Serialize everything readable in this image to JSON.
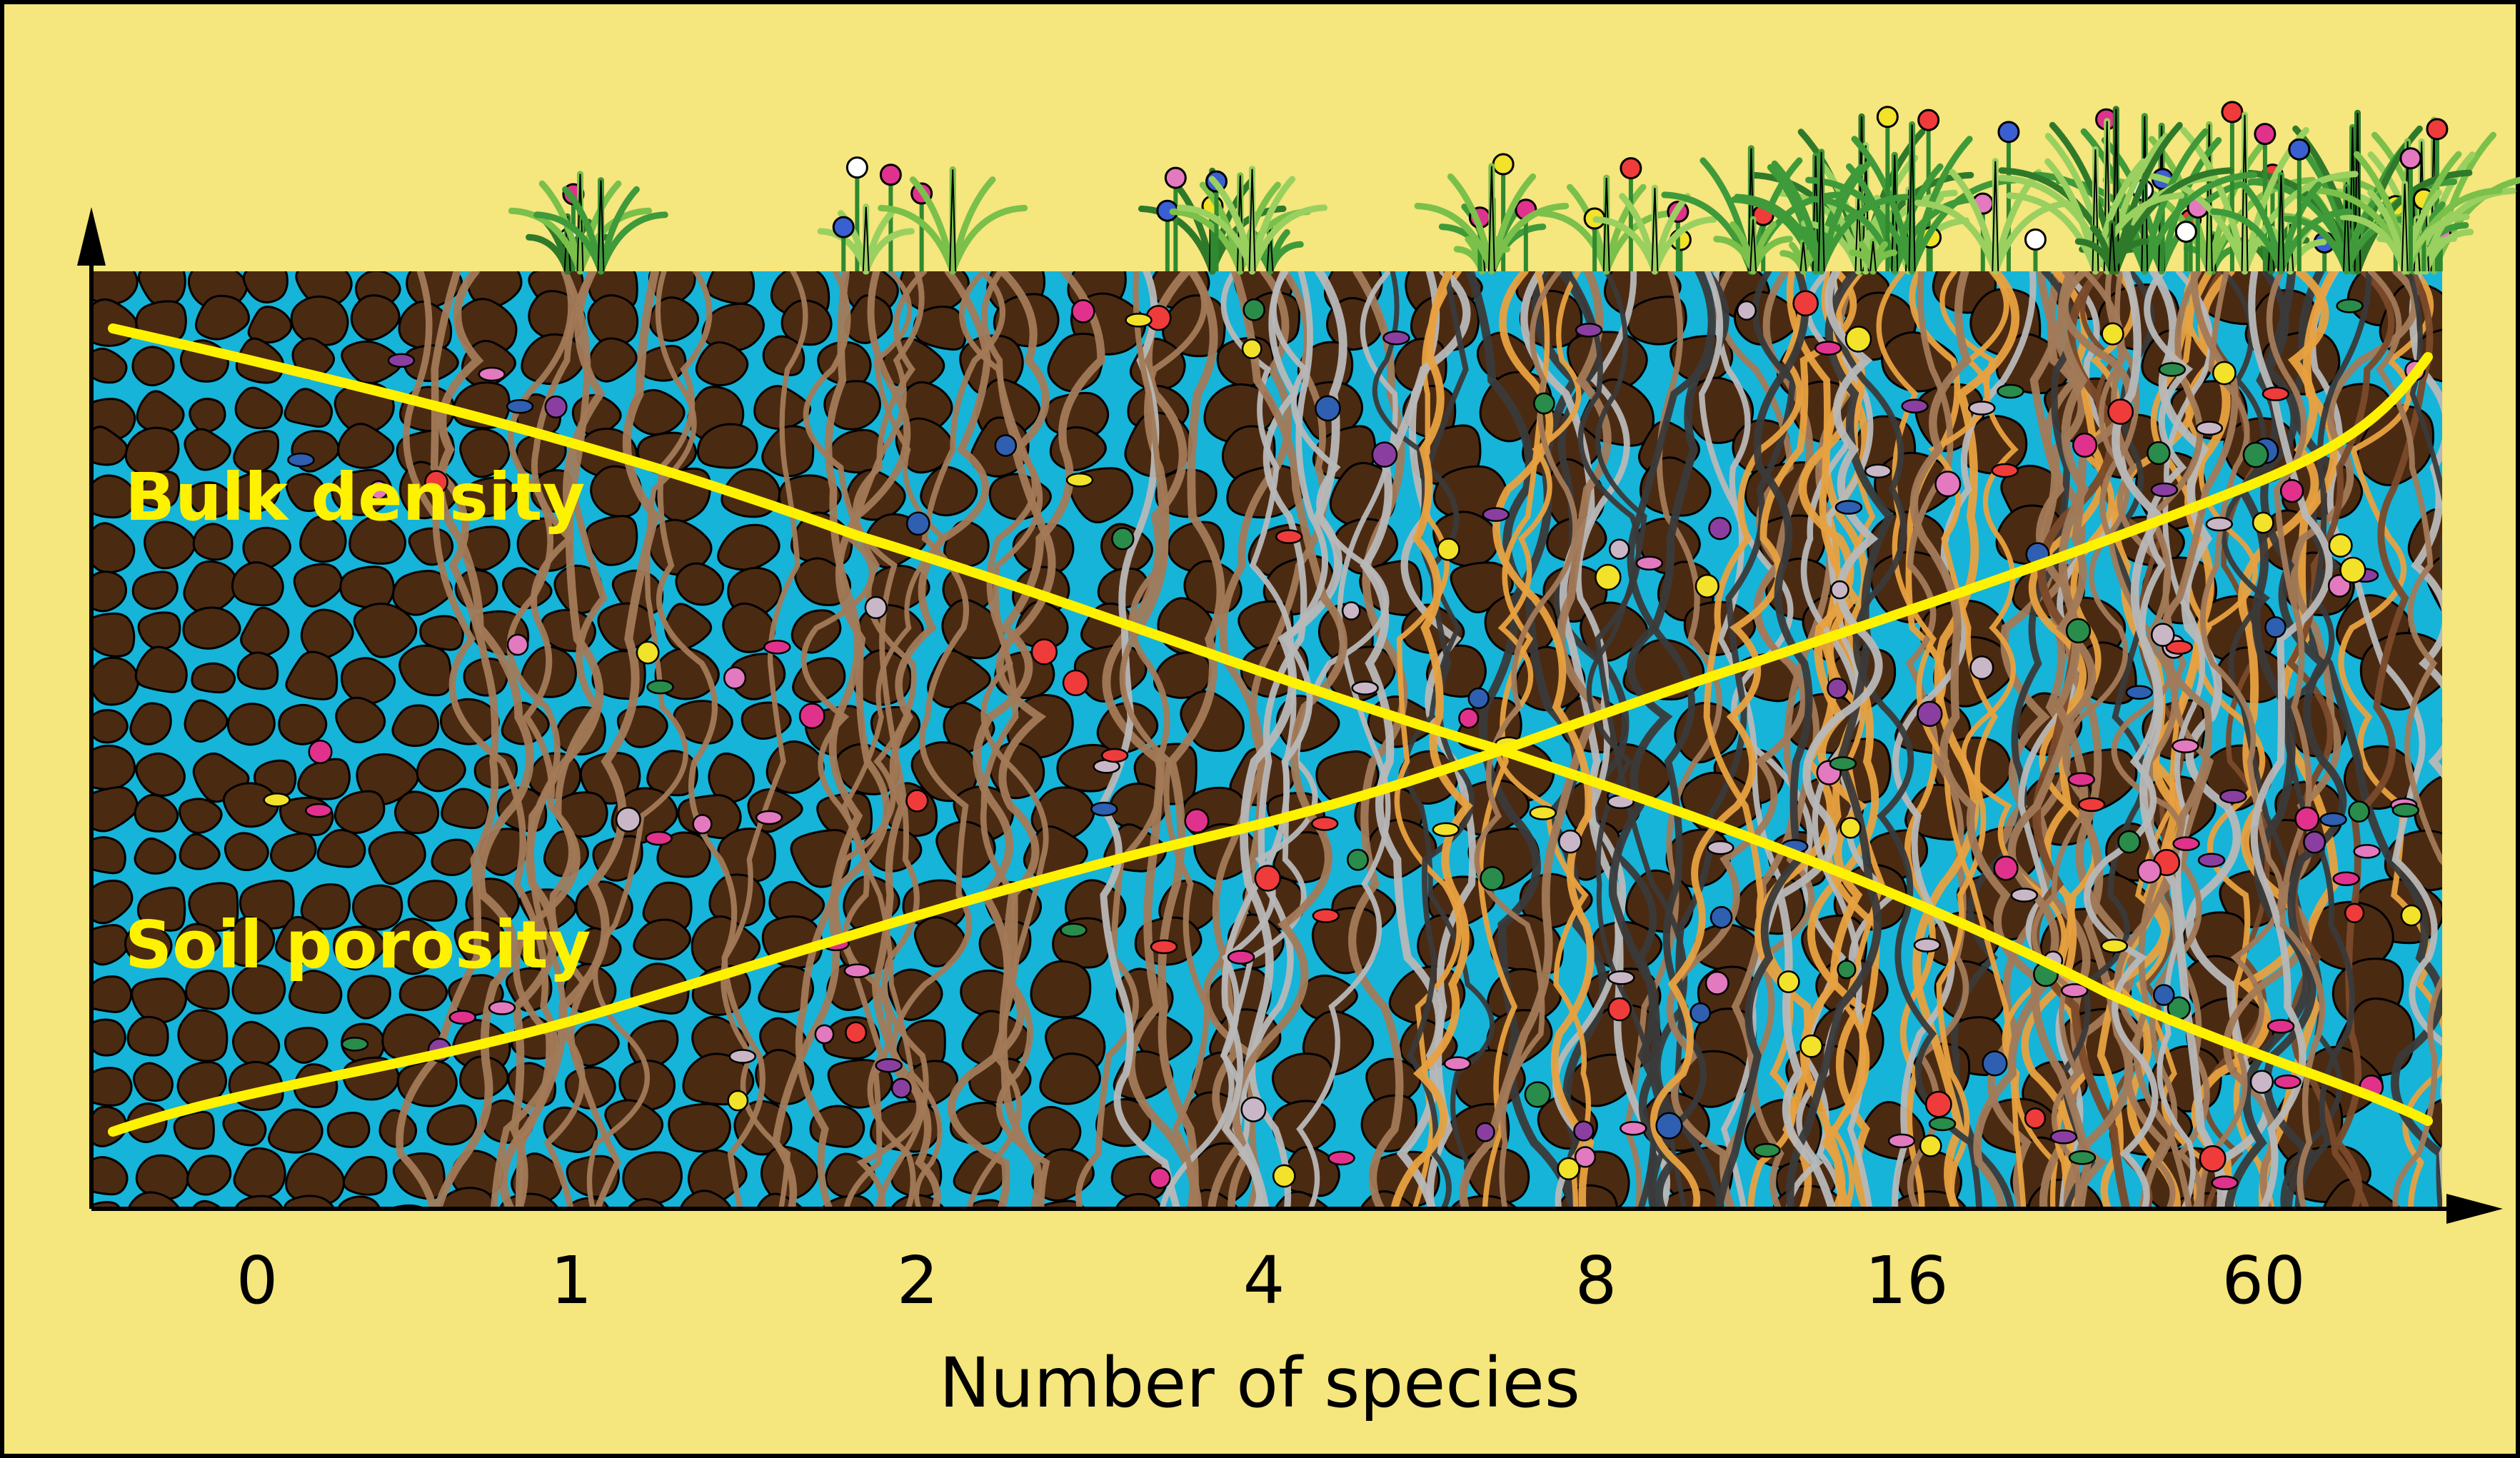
{
  "curves": {
    "bulk_density": {
      "label": "Bulk density"
    },
    "soil_porosity": {
      "label": "Soil porosity"
    }
  },
  "x_axis": {
    "label": "Number of species",
    "ticks": [
      "0",
      "1",
      "2",
      "4",
      "8",
      "16",
      "60"
    ]
  },
  "colors": {
    "background": "#f5e67e",
    "water": "#16b4d8",
    "soil": "#4b2a12",
    "curve": "#fff200",
    "root_light": "#a27a58",
    "root_grey": "#b8b8b8",
    "root_orange": "#e8a140",
    "root_dark": "#3a3a3a"
  }
}
